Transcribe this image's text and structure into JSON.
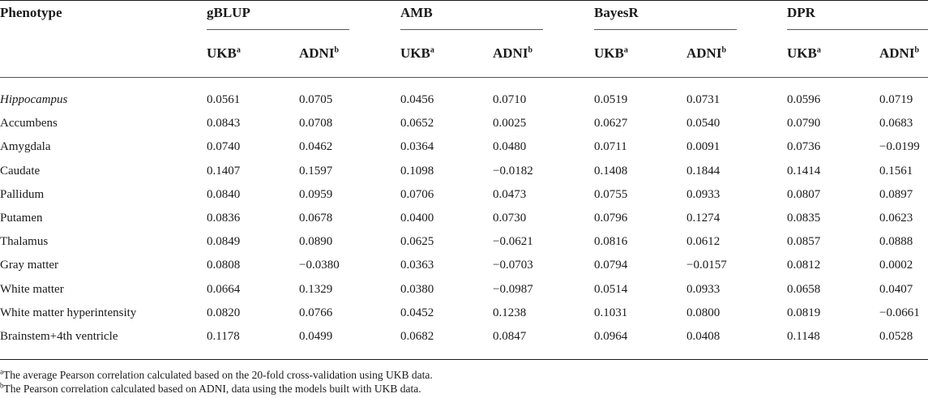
{
  "table": {
    "phenotype_header": "Phenotype",
    "methods": [
      "gBLUP",
      "AMB",
      "BayesR",
      "DPR"
    ],
    "sub_labels": [
      "UKB",
      "ADNI"
    ],
    "sub_marks": [
      "a",
      "b"
    ],
    "rows": [
      {
        "label": "Hippocampus",
        "italic": true,
        "values": [
          "0.0561",
          "0.0705",
          "0.0456",
          "0.0710",
          "0.0519",
          "0.0731",
          "0.0596",
          "0.0719"
        ]
      },
      {
        "label": "Accumbens",
        "values": [
          "0.0843",
          "0.0708",
          "0.0652",
          "0.0025",
          "0.0627",
          "0.0540",
          "0.0790",
          "0.0683"
        ]
      },
      {
        "label": "Amygdala",
        "values": [
          "0.0740",
          "0.0462",
          "0.0364",
          "0.0480",
          "0.0711",
          "0.0091",
          "0.0736",
          "−0.0199"
        ]
      },
      {
        "label": "Caudate",
        "values": [
          "0.1407",
          "0.1597",
          "0.1098",
          "−0.0182",
          "0.1408",
          "0.1844",
          "0.1414",
          "0.1561"
        ]
      },
      {
        "label": "Pallidum",
        "values": [
          "0.0840",
          "0.0959",
          "0.0706",
          "0.0473",
          "0.0755",
          "0.0933",
          "0.0807",
          "0.0897"
        ]
      },
      {
        "label": "Putamen",
        "values": [
          "0.0836",
          "0.0678",
          "0.0400",
          "0.0730",
          "0.0796",
          "0.1274",
          "0.0835",
          "0.0623"
        ]
      },
      {
        "label": "Thalamus",
        "values": [
          "0.0849",
          "0.0890",
          "0.0625",
          "−0.0621",
          "0.0816",
          "0.0612",
          "0.0857",
          "0.0888"
        ]
      },
      {
        "label": "Gray matter",
        "values": [
          "0.0808",
          "−0.0380",
          "0.0363",
          "−0.0703",
          "0.0794",
          "−0.0157",
          "0.0812",
          "0.0002"
        ]
      },
      {
        "label": "White matter",
        "values": [
          "0.0664",
          "0.1329",
          "0.0380",
          "−0.0987",
          "0.0514",
          "0.0933",
          "0.0658",
          "0.0407"
        ]
      },
      {
        "label": "White matter hyperintensity",
        "values": [
          "0.0820",
          "0.0766",
          "0.0452",
          "0.1238",
          "0.1031",
          "0.0800",
          "0.0819",
          "−0.0661"
        ]
      },
      {
        "label": "Brainstem+4th ventricle",
        "values": [
          "0.1178",
          "0.0499",
          "0.0682",
          "0.0847",
          "0.0964",
          "0.0408",
          "0.1148",
          "0.0528"
        ]
      }
    ]
  },
  "footnotes": [
    {
      "mark": "a",
      "text": "The average Pearson correlation calculated based on the 20-fold cross-validation using UKB data."
    },
    {
      "mark": "b",
      "text": "The Pearson correlation calculated based on ADNI, data using the models built with UKB data."
    }
  ]
}
